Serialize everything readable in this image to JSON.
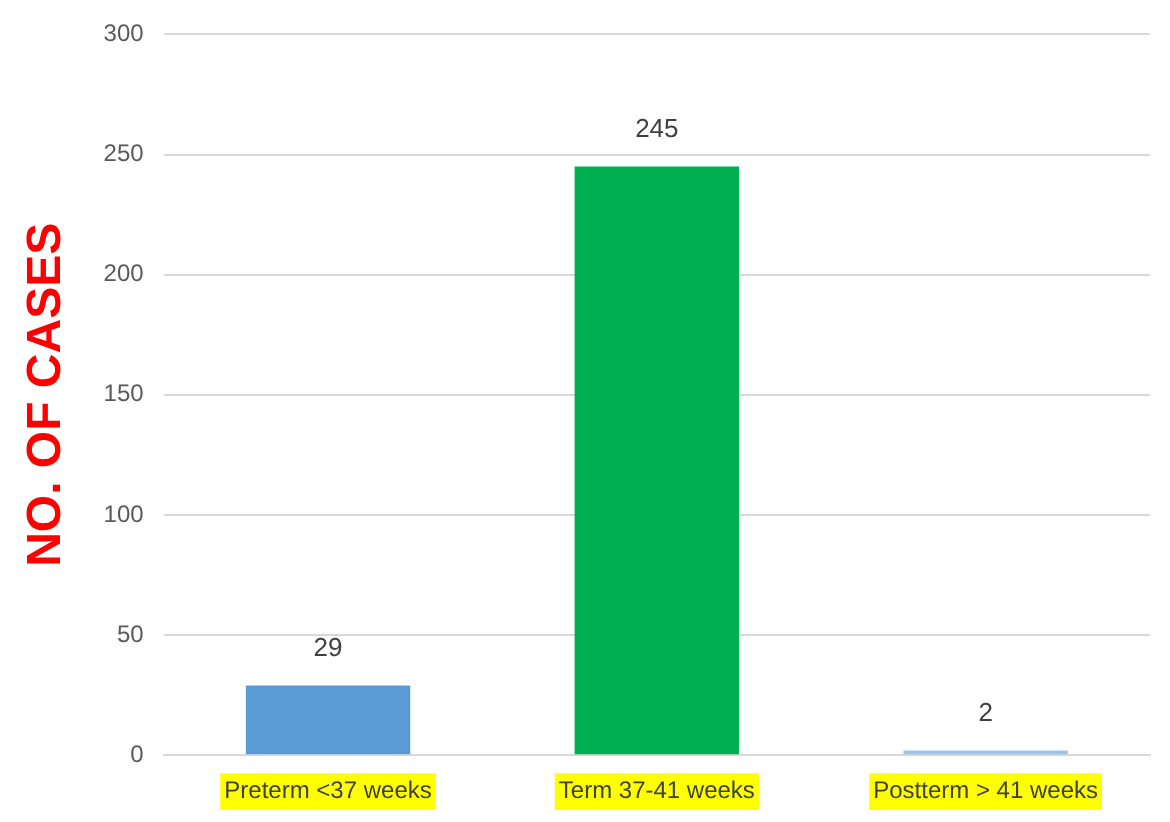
{
  "chart_data": {
    "type": "bar",
    "ylabel": "NO. OF CASES",
    "categories": [
      "Preterm <37 weeks",
      "Term 37-41 weeks",
      "Postterm > 41 weeks"
    ],
    "values": [
      29,
      245,
      2
    ],
    "colors": [
      "#5b9bd5",
      "#00b050",
      "#9dc3e6"
    ],
    "ylim": [
      0,
      300
    ],
    "yticks": [
      0,
      50,
      100,
      150,
      200,
      250,
      300
    ],
    "grid": "y",
    "data_labels": true
  }
}
